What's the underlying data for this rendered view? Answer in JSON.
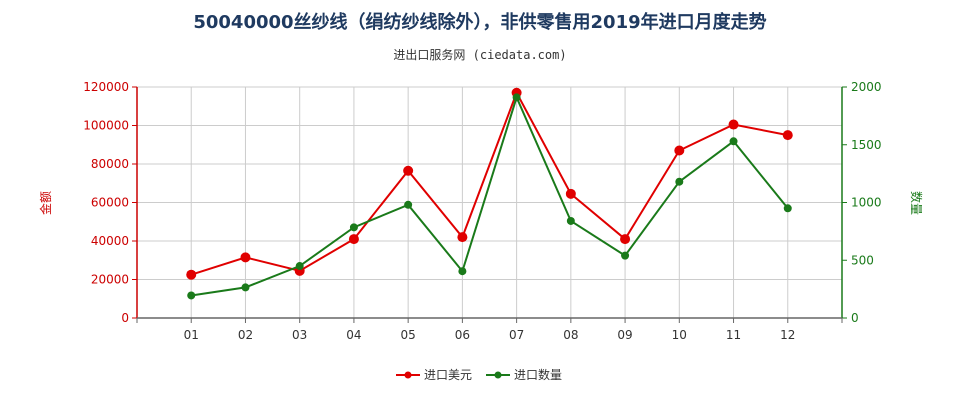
{
  "header": {
    "title": "50040000丝纱线（绢纺纱线除外），非供零售用2019年进口月度走势",
    "subtitle": "进出口服务网 (ciedata.com)"
  },
  "colors": {
    "amount": "#e00000",
    "quantity": "#1a7a1a",
    "grid": "#cccccc"
  },
  "chart_data": {
    "type": "line",
    "categories": [
      "01",
      "02",
      "03",
      "04",
      "05",
      "06",
      "07",
      "08",
      "09",
      "10",
      "11",
      "12"
    ],
    "series": [
      {
        "name": "进口美元",
        "axis": "left",
        "values": [
          22500,
          31500,
          24500,
          41000,
          76500,
          42000,
          117000,
          64500,
          41000,
          87000,
          100500,
          95000
        ]
      },
      {
        "name": "进口数量",
        "axis": "right",
        "values": [
          195,
          265,
          450,
          785,
          980,
          405,
          1910,
          840,
          540,
          1180,
          1530,
          950
        ]
      }
    ],
    "ylabel_left": "金额",
    "ylabel_right": "数量",
    "ylim_left": [
      0,
      120000
    ],
    "ylim_right": [
      0,
      2000
    ],
    "yticks_left": [
      "0",
      "20000",
      "40000",
      "60000",
      "80000",
      "100000",
      "120000"
    ],
    "yticks_right": [
      "0",
      "500",
      "1000",
      "1500",
      "2000"
    ],
    "grid": true,
    "legend_position": "bottom-center"
  }
}
